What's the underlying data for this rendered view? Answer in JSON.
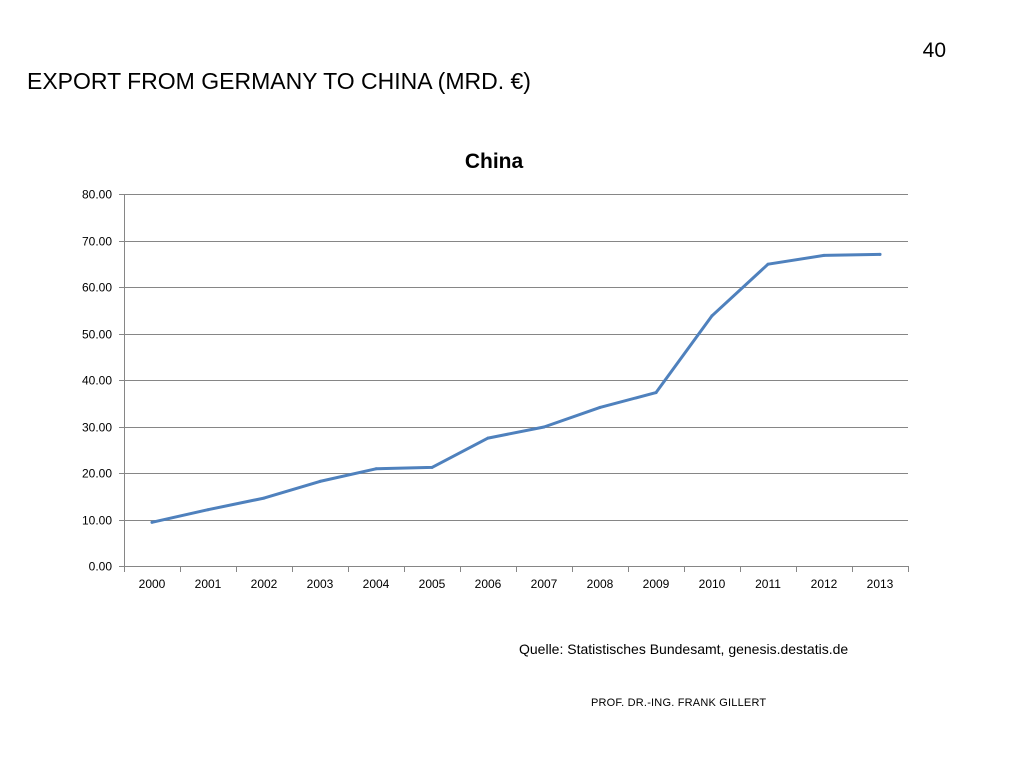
{
  "slide": {
    "page_number": "40",
    "title": "EXPORT FROM GERMANY TO CHINA (MRD. €)",
    "source_note": "Quelle: Statistisches Bundesamt, genesis.destatis.de",
    "author": "PROF. DR.-ING. FRANK GILLERT"
  },
  "chart_data": {
    "type": "line",
    "title": "China",
    "xlabel": "",
    "ylabel": "",
    "categories": [
      "2000",
      "2001",
      "2002",
      "2003",
      "2004",
      "2005",
      "2006",
      "2007",
      "2008",
      "2009",
      "2010",
      "2011",
      "2012",
      "2013"
    ],
    "series": [
      {
        "values": [
          9.4,
          12.1,
          14.6,
          18.2,
          20.9,
          21.2,
          27.5,
          29.9,
          34.1,
          37.3,
          53.8,
          64.9,
          66.8,
          67.0
        ],
        "color": "#4F81BD"
      }
    ],
    "ylim": [
      0,
      80
    ],
    "yticks": [
      "0.00",
      "10.00",
      "20.00",
      "30.00",
      "40.00",
      "50.00",
      "60.00",
      "70.00",
      "80.00"
    ],
    "grid": true,
    "legend": "none",
    "gridline_color": "#868686"
  }
}
